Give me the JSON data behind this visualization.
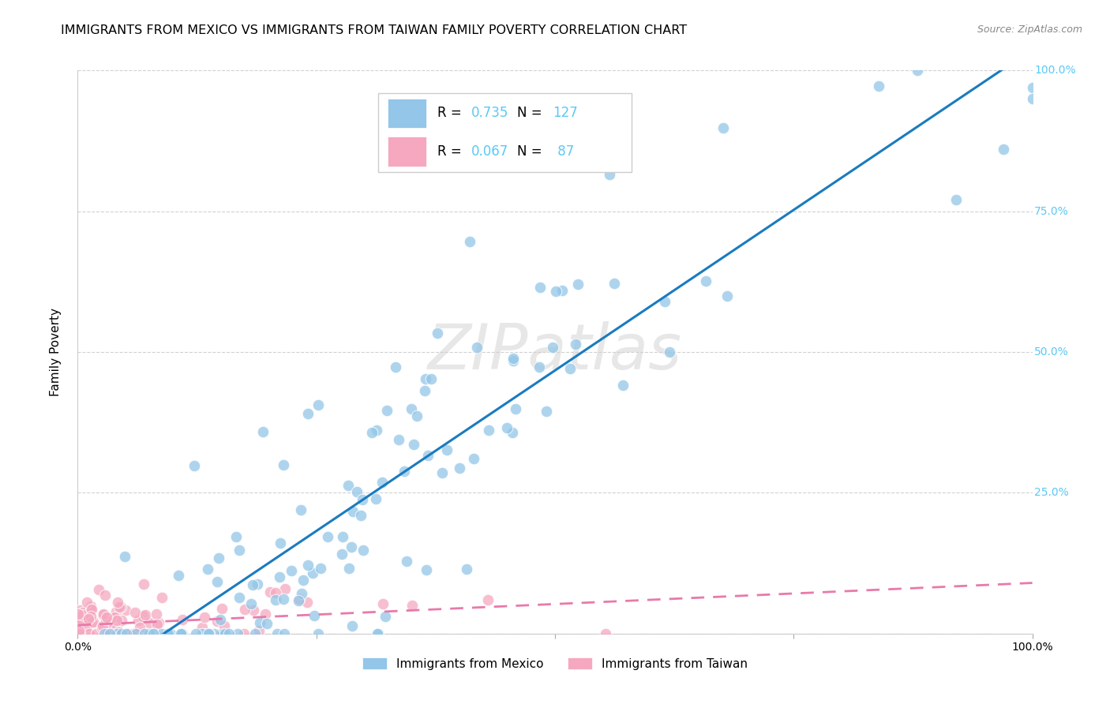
{
  "title": "IMMIGRANTS FROM MEXICO VS IMMIGRANTS FROM TAIWAN FAMILY POVERTY CORRELATION CHART",
  "source": "Source: ZipAtlas.com",
  "ylabel": "Family Poverty",
  "legend_mexico_R": "0.735",
  "legend_mexico_N": "127",
  "legend_taiwan_R": "0.067",
  "legend_taiwan_N": " 87",
  "mexico_color": "#93c6e8",
  "taiwan_color": "#f5a8bf",
  "mexico_line_color": "#1a7bbf",
  "taiwan_line_color": "#e87aab",
  "background_color": "#ffffff",
  "legend_label_mexico": "Immigrants from Mexico",
  "legend_label_taiwan": "Immigrants from Taiwan",
  "ytick_color": "#5bc8f5",
  "title_fontsize": 11.5,
  "axis_tick_fontsize": 10,
  "legend_fontsize": 12,
  "mexico_seed": 42,
  "taiwan_seed": 7
}
